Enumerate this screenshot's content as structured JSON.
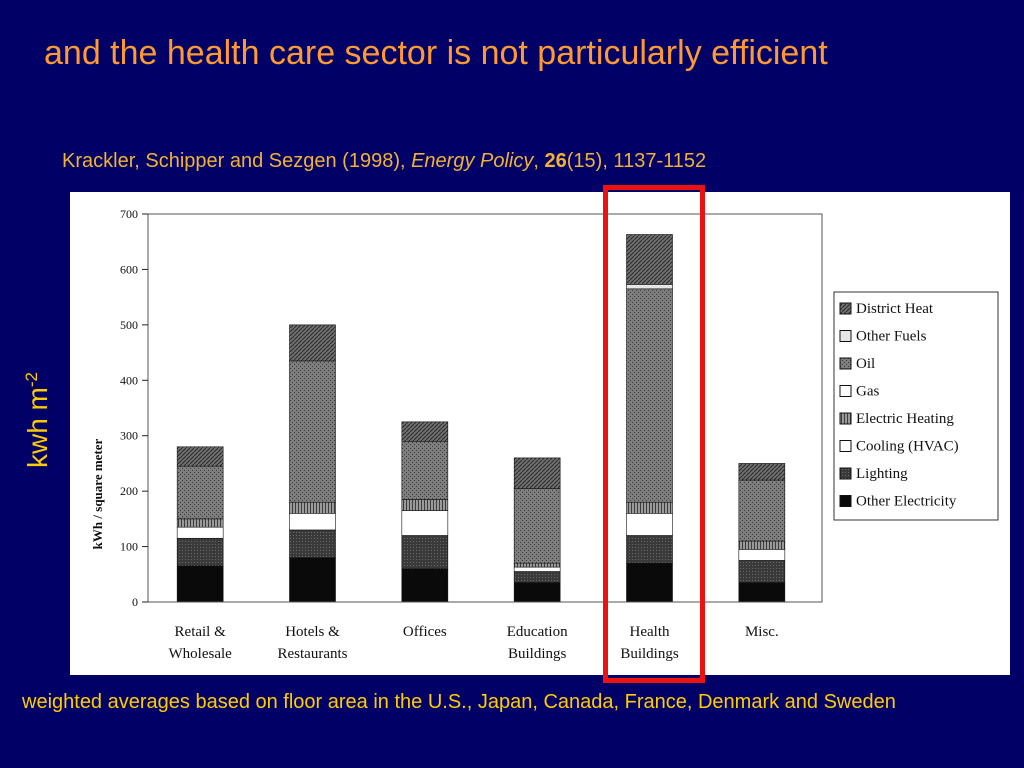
{
  "slide": {
    "title": "and the health care sector is not particularly efficient",
    "citation": {
      "authors": "Krackler, Schipper and Sezgen (1998), ",
      "journal": "Energy Policy",
      "sep": ", ",
      "volume": "26",
      "rest": "(15), 1137-1152"
    },
    "outer_ylabel": "kwh m",
    "outer_ylabel_sup": "-2",
    "footnote": "weighted averages based on floor area in the U.S., Japan, Canada, France, Denmark and Sweden"
  },
  "colors": {
    "background": "#000066",
    "title": "#ff9a33",
    "citation": "#f2b233",
    "annotation": "#ffcc00",
    "highlight": "#ee1111"
  },
  "chart_data": {
    "type": "bar",
    "stacked": true,
    "ylabel": "kWh / square meter",
    "ylim": [
      0,
      700
    ],
    "yticks": [
      0,
      100,
      200,
      300,
      400,
      500,
      600,
      700
    ],
    "categories": [
      [
        "Retail &",
        "Wholesale"
      ],
      [
        "Hotels &",
        "Restaurants"
      ],
      [
        "Offices"
      ],
      [
        "Education",
        "Buildings"
      ],
      [
        "Health",
        "Buildings"
      ],
      [
        "Misc."
      ]
    ],
    "highlighted_category": 4,
    "legend_position": "right",
    "series": [
      {
        "name": "Other  Electricity",
        "color": "#0a0a0a",
        "values": [
          65,
          80,
          60,
          35,
          70,
          35
        ]
      },
      {
        "name": "Lighting",
        "color": "#3d3d3d",
        "values": [
          50,
          50,
          60,
          20,
          50,
          40
        ]
      },
      {
        "name": "Cooling (HVAC)",
        "color": "#ffffff",
        "values": [
          20,
          30,
          45,
          8,
          40,
          20
        ]
      },
      {
        "name": "Electric Heating",
        "color": "#7a7a7a",
        "values": [
          15,
          20,
          20,
          7,
          20,
          15
        ]
      },
      {
        "name": "Gas",
        "color": "#ffffff",
        "values": [
          0,
          0,
          0,
          0,
          0,
          0
        ]
      },
      {
        "name": "Oil",
        "color": "#8c8c8c",
        "values": [
          95,
          255,
          105,
          135,
          385,
          110
        ]
      },
      {
        "name": "Other Fuels",
        "color": "#e6e6e6",
        "values": [
          0,
          0,
          0,
          0,
          8,
          0
        ]
      },
      {
        "name": "District Heat",
        "color": "#5a5a5a",
        "values": [
          35,
          65,
          35,
          55,
          90,
          30
        ]
      }
    ],
    "legend_order": [
      "District Heat",
      "Other Fuels",
      "Oil",
      "Gas",
      "Electric Heating",
      "Cooling (HVAC)",
      "Lighting",
      "Other  Electricity"
    ]
  }
}
